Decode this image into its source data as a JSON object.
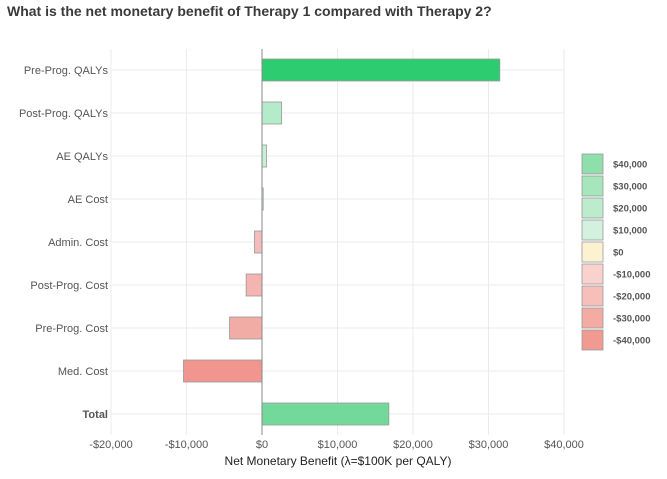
{
  "title": "What is the net monetary benefit of Therapy 1 compared with Therapy 2?",
  "chart_data": {
    "type": "bar",
    "orientation": "horizontal",
    "title": "What is the net monetary benefit of Therapy 1 compared with Therapy 2?",
    "xlabel": "Net Monetary Benefit (λ=$100K per QALY)",
    "ylabel": "",
    "xlim": [
      -20000,
      40000
    ],
    "x_ticks": [
      -20000,
      -10000,
      0,
      10000,
      20000,
      30000,
      40000
    ],
    "x_tick_labels": [
      "-$20,000",
      "-$10,000",
      "$0",
      "$10,000",
      "$20,000",
      "$30,000",
      "$40,000"
    ],
    "grid": true,
    "categories": [
      "Pre-Prog. QALYs",
      "Post-Prog. QALYs",
      "AE QALYs",
      "AE Cost",
      "Admin. Cost",
      "Post-Prog. Cost",
      "Pre-Prog. Cost",
      "Med. Cost",
      "Total"
    ],
    "bold_categories": [
      "Total"
    ],
    "values": [
      31500,
      2600,
      600,
      50,
      -1000,
      -2100,
      -4300,
      -10400,
      16800
    ],
    "colors": [
      "#2ecc71",
      "#b3ebcb",
      "#c6f0d6",
      "#d9f5e3",
      "#f3bdbd",
      "#f4b4b1",
      "#f2aca6",
      "#f0968f",
      "#72d99b"
    ],
    "legend": {
      "placement": "right",
      "items": [
        {
          "label": "$40,000",
          "color": "#8edfac"
        },
        {
          "label": "$30,000",
          "color": "#a6e6bd"
        },
        {
          "label": "$20,000",
          "color": "#bdeccd"
        },
        {
          "label": "$10,000",
          "color": "#d2f2dd"
        },
        {
          "label": "$0",
          "color": "#fcf2d2"
        },
        {
          "label": "-$10,000",
          "color": "#f9d2ce"
        },
        {
          "label": "-$20,000",
          "color": "#f6bfb9"
        },
        {
          "label": "-$30,000",
          "color": "#f3aba3"
        },
        {
          "label": "-$40,000",
          "color": "#f09a92"
        }
      ]
    }
  }
}
